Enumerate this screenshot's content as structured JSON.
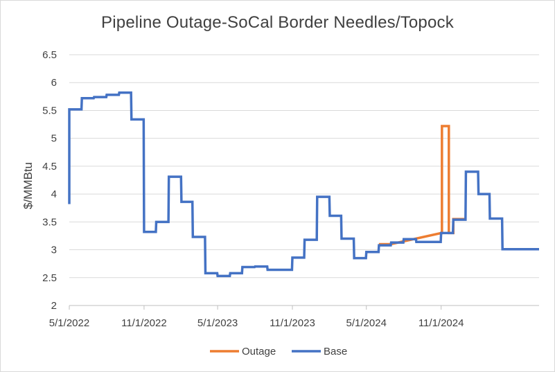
{
  "chart_data": {
    "type": "line",
    "title": "Pipeline Outage-SoCal Border Needles/Topock",
    "xlabel": "",
    "ylabel": "$/MMBtu",
    "ylim": [
      2,
      6.5
    ],
    "y_ticks": [
      "2",
      "2.5",
      "3",
      "3.5",
      "4",
      "4.5",
      "5",
      "5.5",
      "6",
      "6.5"
    ],
    "xlim": [
      "2022-05-01",
      "2025-06-30"
    ],
    "x_ticks": [
      {
        "date": "2022-05-01",
        "label": "5/1/2022"
      },
      {
        "date": "2022-11-01",
        "label": "11/1/2022"
      },
      {
        "date": "2023-05-01",
        "label": "5/1/2023"
      },
      {
        "date": "2023-11-01",
        "label": "11/1/2023"
      },
      {
        "date": "2024-05-01",
        "label": "5/1/2024"
      },
      {
        "date": "2024-11-01",
        "label": "11/1/2024"
      }
    ],
    "grid": true,
    "legend_position": "bottom",
    "series": [
      {
        "name": "Outage",
        "color": "#ED7D31",
        "points": [
          [
            "2024-06-01",
            3.1
          ],
          [
            "2024-06-30",
            3.1
          ],
          [
            "2024-11-01",
            3.3
          ],
          [
            "2024-11-03",
            3.3
          ],
          [
            "2024-11-03",
            5.22
          ],
          [
            "2024-11-20",
            5.22
          ],
          [
            "2024-11-20",
            3.3
          ],
          [
            "2024-12-01",
            3.3
          ],
          [
            "2024-12-01",
            3.55
          ],
          [
            "2024-12-31",
            3.55
          ]
        ]
      },
      {
        "name": "Base",
        "color": "#4472C4",
        "points": [
          [
            "2022-05-01",
            3.82
          ],
          [
            "2022-05-01",
            5.52
          ],
          [
            "2022-05-31",
            5.52
          ],
          [
            "2022-06-01",
            5.72
          ],
          [
            "2022-06-30",
            5.72
          ],
          [
            "2022-07-01",
            5.74
          ],
          [
            "2022-07-31",
            5.74
          ],
          [
            "2022-08-01",
            5.78
          ],
          [
            "2022-08-31",
            5.78
          ],
          [
            "2022-09-01",
            5.82
          ],
          [
            "2022-09-30",
            5.82
          ],
          [
            "2022-10-01",
            5.34
          ],
          [
            "2022-10-31",
            5.34
          ],
          [
            "2022-11-01",
            3.32
          ],
          [
            "2022-11-30",
            3.32
          ],
          [
            "2022-12-01",
            3.5
          ],
          [
            "2022-12-31",
            3.5
          ],
          [
            "2023-01-01",
            4.31
          ],
          [
            "2023-01-31",
            4.31
          ],
          [
            "2023-02-01",
            3.86
          ],
          [
            "2023-02-28",
            3.86
          ],
          [
            "2023-03-01",
            3.23
          ],
          [
            "2023-03-31",
            3.23
          ],
          [
            "2023-04-01",
            2.58
          ],
          [
            "2023-04-30",
            2.58
          ],
          [
            "2023-05-01",
            2.53
          ],
          [
            "2023-05-31",
            2.53
          ],
          [
            "2023-06-01",
            2.58
          ],
          [
            "2023-06-30",
            2.58
          ],
          [
            "2023-07-01",
            2.69
          ],
          [
            "2023-07-31",
            2.69
          ],
          [
            "2023-08-01",
            2.7
          ],
          [
            "2023-08-31",
            2.7
          ],
          [
            "2023-09-01",
            2.64
          ],
          [
            "2023-10-31",
            2.64
          ],
          [
            "2023-11-01",
            2.86
          ],
          [
            "2023-11-30",
            2.86
          ],
          [
            "2023-12-01",
            3.18
          ],
          [
            "2023-12-31",
            3.18
          ],
          [
            "2024-01-01",
            3.95
          ],
          [
            "2024-01-31",
            3.95
          ],
          [
            "2024-02-01",
            3.61
          ],
          [
            "2024-02-29",
            3.61
          ],
          [
            "2024-03-01",
            3.2
          ],
          [
            "2024-03-31",
            3.2
          ],
          [
            "2024-04-01",
            2.85
          ],
          [
            "2024-04-30",
            2.85
          ],
          [
            "2024-05-01",
            2.96
          ],
          [
            "2024-05-31",
            2.96
          ],
          [
            "2024-06-01",
            3.08
          ],
          [
            "2024-06-30",
            3.08
          ],
          [
            "2024-07-01",
            3.13
          ],
          [
            "2024-07-31",
            3.13
          ],
          [
            "2024-08-01",
            3.19
          ],
          [
            "2024-08-31",
            3.19
          ],
          [
            "2024-09-01",
            3.14
          ],
          [
            "2024-10-31",
            3.14
          ],
          [
            "2024-11-01",
            3.3
          ],
          [
            "2024-11-30",
            3.3
          ],
          [
            "2024-12-01",
            3.54
          ],
          [
            "2024-12-31",
            3.54
          ],
          [
            "2025-01-01",
            4.4
          ],
          [
            "2025-01-31",
            4.4
          ],
          [
            "2025-02-01",
            4.0
          ],
          [
            "2025-02-28",
            4.0
          ],
          [
            "2025-03-01",
            3.56
          ],
          [
            "2025-03-31",
            3.56
          ],
          [
            "2025-04-01",
            3.01
          ],
          [
            "2025-04-30",
            3.01
          ],
          [
            "2025-06-30",
            3.01
          ]
        ]
      }
    ]
  }
}
